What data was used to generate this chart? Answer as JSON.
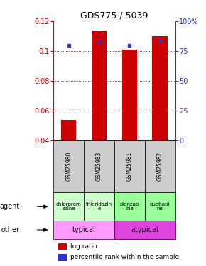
{
  "title": "GDS775 / 5039",
  "samples": [
    "GSM25980",
    "GSM25983",
    "GSM25981",
    "GSM25982"
  ],
  "log_ratio": [
    0.054,
    0.114,
    0.101,
    0.11
  ],
  "percentile_rank_pct": [
    80,
    83,
    80,
    84
  ],
  "ylim_left": [
    0.04,
    0.12
  ],
  "ylim_right": [
    0,
    100
  ],
  "yticks_left": [
    0.04,
    0.06,
    0.08,
    0.1,
    0.12
  ],
  "ytick_labels_left": [
    "0.04",
    "0.06",
    "0.08",
    "0.1",
    "0.12"
  ],
  "yticks_right": [
    0,
    25,
    50,
    75,
    100
  ],
  "ytick_labels_right": [
    "0",
    "25",
    "50",
    "75",
    "100%"
  ],
  "agent_labels": [
    "chlorprom\nazine",
    "thioridazin\ne",
    "olanzap\nine",
    "quetiapi\nne"
  ],
  "agent_colors_typical": "#ccffcc",
  "agent_colors_atypical": "#99ff99",
  "other_typical_color": "#ff99ff",
  "other_atypical_color": "#dd44dd",
  "sample_bg_color": "#cccccc",
  "bar_color": "#cc0000",
  "dot_color": "#3333cc",
  "left_tick_color": "#cc0000",
  "right_tick_color": "#3333cc",
  "legend_red_label": "log ratio",
  "legend_blue_label": "percentile rank within the sample",
  "agent_row_label": "agent",
  "other_row_label": "other",
  "bar_width": 0.5
}
